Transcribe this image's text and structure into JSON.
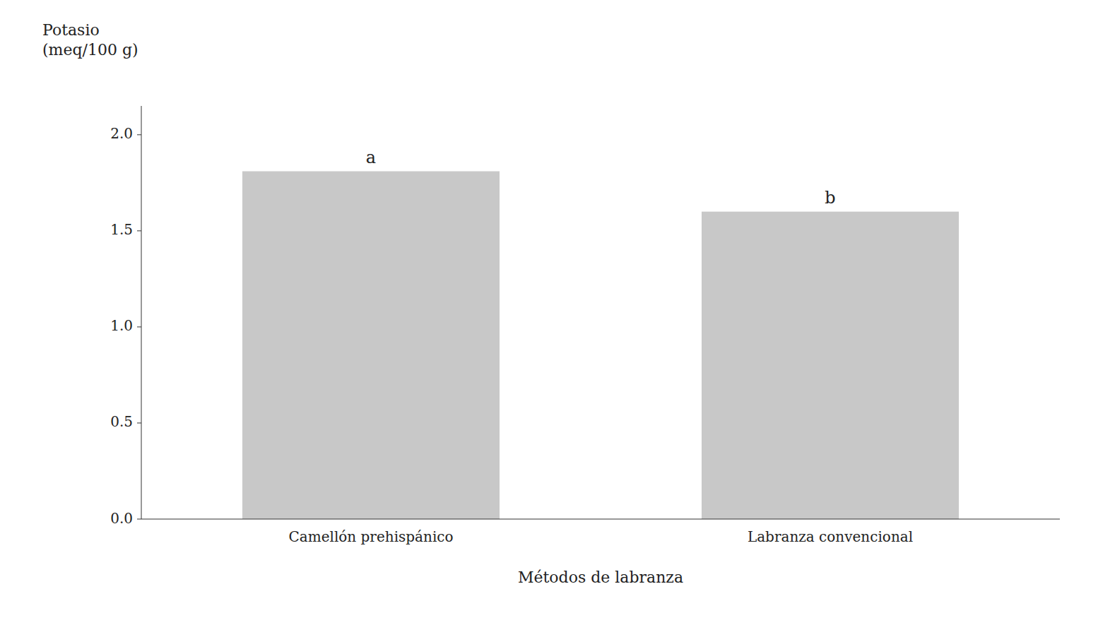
{
  "chart_data": {
    "type": "bar",
    "categories": [
      "Camellón prehispánico",
      "Labranza convencional"
    ],
    "values": [
      1.81,
      1.6
    ],
    "color": "#c8c8c8",
    "annotations": [
      "a",
      "b"
    ],
    "x_label": "Métodos de labranza",
    "y_label": "Potasio\n(meq/100 g)",
    "ylim": [
      0,
      2.15
    ],
    "yticks": [
      {
        "value": 0,
        "label": "0.0"
      },
      0.5,
      {
        "value": 1,
        "label": "1.0"
      },
      1.5,
      {
        "value": 2,
        "label": "2.0"
      }
    ],
    "grid": false
  }
}
